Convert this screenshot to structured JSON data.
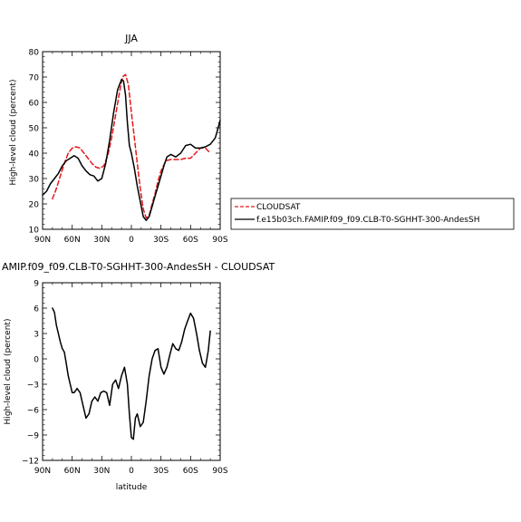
{
  "chart_data": [
    {
      "type": "line",
      "title": "JJA",
      "xlabel": "",
      "ylabel": "High-level cloud (percent)",
      "xlim": [
        90,
        -90
      ],
      "ylim": [
        10,
        80
      ],
      "x_ticks": [
        90,
        60,
        30,
        0,
        -30,
        -60,
        -90
      ],
      "x_tick_labels": [
        "90N",
        "60N",
        "30N",
        "0",
        "30S",
        "60S",
        "90S"
      ],
      "y_ticks": [
        10,
        20,
        30,
        40,
        50,
        60,
        70,
        80
      ],
      "y_tick_labels": [
        "10",
        "20",
        "30",
        "40",
        "50",
        "60",
        "70",
        "80"
      ],
      "legend_position": "right",
      "series": [
        {
          "name": "CLOUDSAT",
          "color": "#e8181b",
          "dash": "dashed",
          "x": [
            80,
            76,
            72,
            68,
            64,
            60,
            56,
            52,
            48,
            44,
            40,
            36,
            32,
            28,
            24,
            20,
            16,
            12,
            9,
            6,
            3,
            0,
            -3,
            -6,
            -9,
            -12,
            -15,
            -18,
            -21,
            -24,
            -27,
            -30,
            -35,
            -40,
            -45,
            -50,
            -55,
            -60,
            -65,
            -70,
            -75,
            -80
          ],
          "y": [
            22,
            26,
            31,
            36,
            40,
            42,
            42.5,
            42,
            40,
            38,
            36,
            34.5,
            34,
            35,
            39,
            46,
            55,
            64,
            70,
            71,
            67,
            56,
            46,
            36,
            26,
            18,
            14.5,
            15.5,
            20,
            24,
            29,
            33,
            37,
            37.5,
            37.5,
            37.5,
            38,
            38,
            40,
            42,
            42,
            40
          ]
        },
        {
          "name": "f.e15b03ch.FAMIP.f09_f09.CLB-T0-SGHHT-300-AndesSH",
          "color": "#000000",
          "dash": "solid",
          "x": [
            90,
            86,
            82,
            78,
            74,
            70,
            66,
            62,
            58,
            54,
            50,
            46,
            42,
            38,
            34,
            30,
            26,
            22,
            18,
            14,
            10,
            8,
            6,
            4,
            2,
            0,
            -3,
            -6,
            -9,
            -12,
            -15,
            -18,
            -21,
            -24,
            -27,
            -30,
            -33,
            -36,
            -40,
            -45,
            -50,
            -55,
            -60,
            -65,
            -70,
            -75,
            -80,
            -85,
            -88,
            -90
          ],
          "y": [
            23.5,
            25,
            28,
            30,
            32,
            35,
            37,
            38,
            39,
            38,
            35,
            33,
            31.5,
            31,
            29,
            30,
            36,
            45,
            56,
            65,
            69,
            68.5,
            63,
            52,
            43,
            40,
            34,
            27,
            21,
            15,
            13.5,
            15,
            19,
            23,
            27,
            31,
            35,
            38.5,
            39.5,
            38.5,
            40,
            43,
            43.5,
            42,
            42,
            42.5,
            43.5,
            46,
            50,
            53
          ]
        }
      ]
    },
    {
      "type": "line",
      "title": "AMIP.f09_f09.CLB-T0-SGHHT-300-AndesSH  -  CLOUDSAT",
      "xlabel": "latitude",
      "ylabel": "High-level cloud (percent)",
      "xlim": [
        90,
        -90
      ],
      "ylim": [
        -12,
        9
      ],
      "x_ticks": [
        90,
        60,
        30,
        0,
        -30,
        -60,
        -90
      ],
      "x_tick_labels": [
        "90N",
        "60N",
        "30N",
        "0",
        "30S",
        "60S",
        "90S"
      ],
      "y_ticks": [
        -12,
        -9,
        -6,
        -3,
        0,
        3,
        6,
        9
      ],
      "y_tick_labels": [
        "−12",
        "−9",
        "−6",
        "−3",
        "0",
        "3",
        "6",
        "9"
      ],
      "series": [
        {
          "color": "#000000",
          "dash": "solid",
          "x": [
            80,
            78,
            76,
            74,
            72,
            70,
            68,
            66,
            64,
            62,
            60,
            58,
            55,
            52,
            49,
            46,
            43,
            40,
            37,
            34,
            31,
            28,
            25,
            22,
            19,
            16,
            13,
            10,
            7,
            4,
            2,
            0,
            -2,
            -4,
            -6,
            -9,
            -12,
            -15,
            -18,
            -21,
            -24,
            -27,
            -30,
            -33,
            -36,
            -39,
            -42,
            -45,
            -48,
            -51,
            -54,
            -57,
            -60,
            -63,
            -66,
            -69,
            -72,
            -75,
            -78,
            -80
          ],
          "y": [
            6,
            5.5,
            4,
            3,
            2,
            1.2,
            0.8,
            -0.5,
            -2,
            -3,
            -4,
            -4,
            -3.5,
            -4,
            -5.5,
            -7,
            -6.5,
            -5,
            -4.5,
            -5,
            -4,
            -3.8,
            -4,
            -5.5,
            -3,
            -2.5,
            -3.5,
            -2,
            -1,
            -3,
            -6.5,
            -9.3,
            -9.5,
            -7,
            -6.5,
            -8,
            -7.5,
            -5,
            -2,
            0,
            1,
            1.2,
            -1,
            -1.8,
            -1,
            0.5,
            1.8,
            1.2,
            1,
            2,
            3.5,
            4.5,
            5.4,
            4.8,
            3,
            1,
            -0.5,
            -1,
            1,
            3.3
          ]
        }
      ]
    }
  ]
}
